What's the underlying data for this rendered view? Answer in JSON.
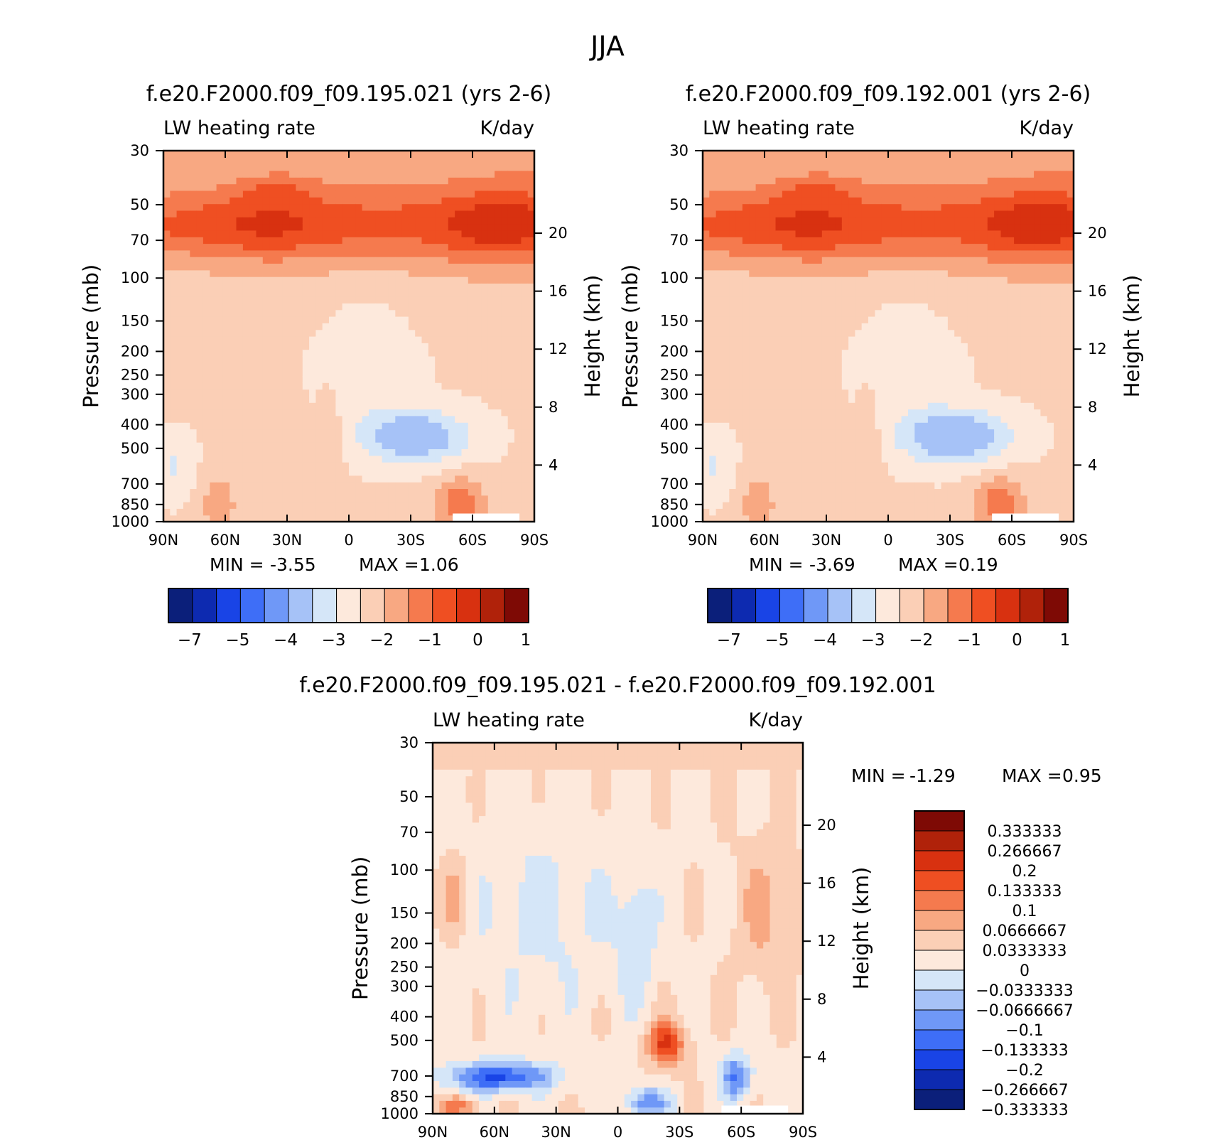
{
  "page_title": "JJA",
  "chart_data": [
    {
      "type": "heatmap",
      "title": "f.e20.F2000.f09_f09.195.021 (yrs 2-6)",
      "left_label": "LW heating rate",
      "right_label": "K/day",
      "ylabel": "Pressure (mb)",
      "ylabel_right": "Height (km)",
      "x_ticks": [
        "90N",
        "60N",
        "30N",
        "0",
        "30S",
        "60S",
        "90S"
      ],
      "y_ticks": [
        "30",
        "50",
        "70",
        "100",
        "150",
        "200",
        "250",
        "300",
        "400",
        "500",
        "700",
        "850",
        "1000"
      ],
      "height_ticks": [
        "20",
        "16",
        "12",
        "8",
        "4"
      ],
      "ylim": [
        1000,
        30
      ],
      "y_scale": "log",
      "min_label": "MIN =",
      "min_value": "-3.55",
      "max_label": "MAX =",
      "max_value": "1.06",
      "colorbar_labels": [
        "-7",
        "-5",
        "-4",
        "-3",
        "-2",
        "-1",
        "0",
        "1"
      ],
      "colorbar_colors": [
        "#0b1f7a",
        "#0d2ab0",
        "#1944e6",
        "#3e6ef7",
        "#6f98f7",
        "#a6c2f7",
        "#d5e6f8",
        "#fde9dc",
        "#fbcfb6",
        "#f8a882",
        "#f57a4e",
        "#ef4f22",
        "#d83110",
        "#b0220a",
        "#7e0a05"
      ]
    },
    {
      "type": "heatmap",
      "title": "f.e20.F2000.f09_f09.192.001 (yrs 2-6)",
      "left_label": "LW heating rate",
      "right_label": "K/day",
      "ylabel": "Pressure (mb)",
      "ylabel_right": "Height (km)",
      "x_ticks": [
        "90N",
        "60N",
        "30N",
        "0",
        "30S",
        "60S",
        "90S"
      ],
      "y_ticks": [
        "30",
        "50",
        "70",
        "100",
        "150",
        "200",
        "250",
        "300",
        "400",
        "500",
        "700",
        "850",
        "1000"
      ],
      "height_ticks": [
        "20",
        "16",
        "12",
        "8",
        "4"
      ],
      "ylim": [
        1000,
        30
      ],
      "y_scale": "log",
      "min_label": "MIN =",
      "min_value": "-3.69",
      "max_label": "MAX =",
      "max_value": "0.19",
      "colorbar_labels": [
        "-7",
        "-5",
        "-4",
        "-3",
        "-2",
        "-1",
        "0",
        "1"
      ],
      "colorbar_colors": [
        "#0b1f7a",
        "#0d2ab0",
        "#1944e6",
        "#3e6ef7",
        "#6f98f7",
        "#a6c2f7",
        "#d5e6f8",
        "#fde9dc",
        "#fbcfb6",
        "#f8a882",
        "#f57a4e",
        "#ef4f22",
        "#d83110",
        "#b0220a",
        "#7e0a05"
      ]
    },
    {
      "type": "heatmap",
      "title": "f.e20.F2000.f09_f09.195.021 - f.e20.F2000.f09_f09.192.001",
      "left_label": "LW heating rate",
      "right_label": "K/day",
      "ylabel": "Pressure (mb)",
      "ylabel_right": "Height (km)",
      "x_ticks": [
        "90N",
        "60N",
        "30N",
        "0",
        "30S",
        "60S",
        "90S"
      ],
      "y_ticks": [
        "30",
        "50",
        "70",
        "100",
        "150",
        "200",
        "250",
        "300",
        "400",
        "500",
        "700",
        "850",
        "1000"
      ],
      "height_ticks": [
        "20",
        "16",
        "12",
        "8",
        "4"
      ],
      "ylim": [
        1000,
        30
      ],
      "y_scale": "log",
      "min_label": "MIN =",
      "min_value": "-1.29",
      "max_label": "MAX =",
      "max_value": "0.95",
      "colorbar_labels": [
        "0.333333",
        "0.266667",
        "0.2",
        "0.133333",
        "0.1",
        "0.0666667",
        "0.0333333",
        "0",
        "-0.0333333",
        "-0.0666667",
        "-0.1",
        "-0.133333",
        "-0.2",
        "-0.266667",
        "-0.333333"
      ],
      "colorbar_colors": [
        "#7e0a05",
        "#b0220a",
        "#d83110",
        "#ef4f22",
        "#f57a4e",
        "#f8a882",
        "#fbcfb6",
        "#fde9dc",
        "#d5e6f8",
        "#a6c2f7",
        "#6f98f7",
        "#3e6ef7",
        "#1944e6",
        "#0d2ab0",
        "#0b1f7a"
      ]
    }
  ]
}
